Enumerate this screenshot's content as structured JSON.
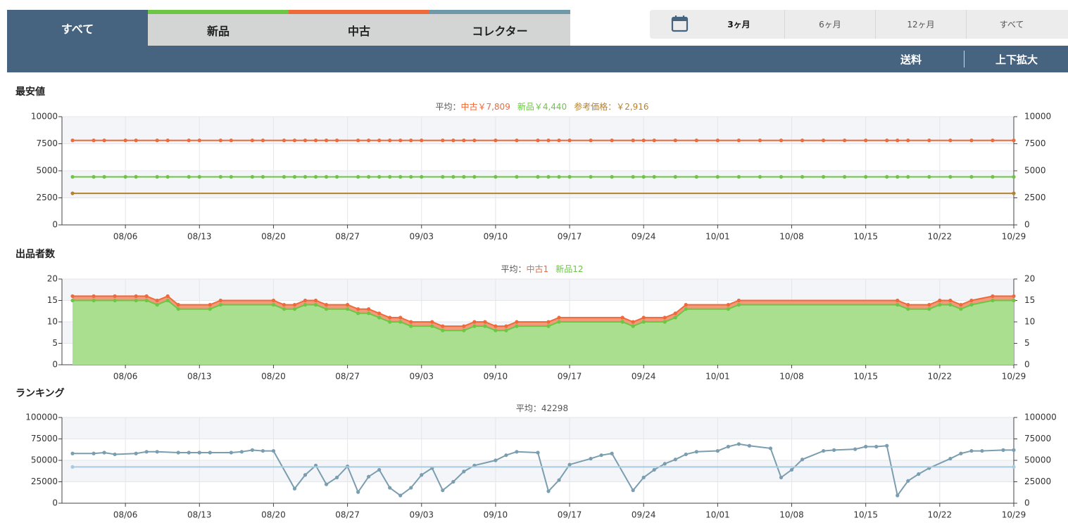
{
  "tabs": [
    {
      "label": "すべて",
      "color": null
    },
    {
      "label": "新品",
      "color": "#6cc644"
    },
    {
      "label": "中古",
      "color": "#ee6a3a"
    },
    {
      "label": "コレクター",
      "color": "#6f98a8"
    }
  ],
  "range_options": [
    "3ヶ月",
    "6ヶ月",
    "12ヶ月",
    "すべて"
  ],
  "toolbar": [
    "送料",
    "上下拡大"
  ],
  "chart_data": [
    {
      "type": "line",
      "title": "最安値",
      "subtitle_prefix": "平均：",
      "xlim": [
        "07/31",
        "10/29"
      ],
      "xticks": [
        "08/06",
        "08/13",
        "08/20",
        "08/27",
        "09/03",
        "09/10",
        "09/17",
        "09/24",
        "10/01",
        "10/08",
        "10/15",
        "10/22",
        "10/29"
      ],
      "ylim": [
        0,
        10000
      ],
      "yticks": [
        0,
        2500,
        5000,
        7500,
        10000
      ],
      "x": [
        "08/01",
        "08/03",
        "08/04",
        "08/06",
        "08/07",
        "08/09",
        "08/10",
        "08/12",
        "08/13",
        "08/15",
        "08/16",
        "08/18",
        "08/19",
        "08/21",
        "08/22",
        "08/23",
        "08/24",
        "08/25",
        "08/26",
        "08/28",
        "08/29",
        "08/30",
        "08/31",
        "09/01",
        "09/02",
        "09/03",
        "09/05",
        "09/06",
        "09/07",
        "09/08",
        "09/10",
        "09/12",
        "09/14",
        "09/15",
        "09/16",
        "09/17",
        "09/19",
        "09/21",
        "09/23",
        "09/24",
        "09/25",
        "09/27",
        "09/29",
        "10/01",
        "10/03",
        "10/05",
        "10/07",
        "10/09",
        "10/11",
        "10/13",
        "10/15",
        "10/17",
        "10/18",
        "10/19",
        "10/21",
        "10/23",
        "10/25",
        "10/27",
        "10/29"
      ],
      "series": [
        {
          "name": "中古",
          "color": "#ee6a3a",
          "average_label": "中古￥7,809",
          "values": [
            7809,
            7809,
            7809,
            7809,
            7809,
            7809,
            7809,
            7809,
            7809,
            7809,
            7809,
            7809,
            7809,
            7809,
            7809,
            7809,
            7809,
            7809,
            7809,
            7809,
            7809,
            7809,
            7809,
            7809,
            7809,
            7809,
            7809,
            7809,
            7809,
            7809,
            7809,
            7809,
            7809,
            7809,
            7809,
            7809,
            7809,
            7809,
            7809,
            7809,
            7809,
            7809,
            7809,
            7809,
            7809,
            7809,
            7809,
            7809,
            7809,
            7809,
            7809,
            7809,
            7809,
            7809,
            7809,
            7809,
            7809,
            7809,
            7809
          ]
        },
        {
          "name": "新品",
          "color": "#6cc644",
          "average_label": "新品￥4,440",
          "values": [
            4440,
            4440,
            4440,
            4440,
            4440,
            4440,
            4440,
            4440,
            4440,
            4440,
            4440,
            4440,
            4440,
            4440,
            4440,
            4440,
            4440,
            4440,
            4440,
            4440,
            4440,
            4440,
            4440,
            4440,
            4440,
            4440,
            4440,
            4440,
            4440,
            4440,
            4440,
            4440,
            4440,
            4440,
            4440,
            4440,
            4440,
            4440,
            4440,
            4440,
            4440,
            4440,
            4440,
            4440,
            4440,
            4440,
            4440,
            4440,
            4440,
            4440,
            4440,
            4440,
            4440,
            4440,
            4440,
            4440,
            4440,
            4440,
            4440
          ]
        },
        {
          "name": "参考価格",
          "color": "#b5822e",
          "average_label": "参考価格：￥2,916",
          "x": [
            "08/01",
            "10/29"
          ],
          "values": [
            2916,
            2916
          ]
        }
      ]
    },
    {
      "type": "stacked-area",
      "title": "出品者数",
      "subtitle_prefix": "平均：",
      "xlim": [
        "07/31",
        "10/29"
      ],
      "xticks": [
        "08/06",
        "08/13",
        "08/20",
        "08/27",
        "09/03",
        "09/10",
        "09/17",
        "09/24",
        "10/01",
        "10/08",
        "10/15",
        "10/22",
        "10/29"
      ],
      "ylim": [
        0,
        20
      ],
      "yticks": [
        0,
        5,
        10,
        15,
        20
      ],
      "x": [
        "08/01",
        "08/03",
        "08/05",
        "08/07",
        "08/08",
        "08/09",
        "08/10",
        "08/11",
        "08/14",
        "08/15",
        "08/20",
        "08/21",
        "08/22",
        "08/23",
        "08/24",
        "08/25",
        "08/27",
        "08/28",
        "08/29",
        "08/30",
        "08/31",
        "09/01",
        "09/02",
        "09/04",
        "09/05",
        "09/07",
        "09/08",
        "09/09",
        "09/10",
        "09/11",
        "09/12",
        "09/15",
        "09/16",
        "09/22",
        "09/23",
        "09/24",
        "09/26",
        "09/27",
        "09/28",
        "10/02",
        "10/03",
        "10/18",
        "10/19",
        "10/21",
        "10/22",
        "10/23",
        "10/24",
        "10/25",
        "10/27",
        "10/29"
      ],
      "series": [
        {
          "name": "新品",
          "color": "#6cc644",
          "fill": "#a9df8f",
          "average_label": "新品12",
          "values": [
            15,
            15,
            15,
            15,
            15,
            14,
            15,
            13,
            13,
            14,
            14,
            13,
            13,
            14,
            14,
            13,
            13,
            12,
            12,
            11,
            10,
            10,
            9,
            9,
            8,
            8,
            9,
            9,
            8,
            8,
            9,
            9,
            10,
            10,
            9,
            10,
            10,
            11,
            13,
            13,
            14,
            14,
            13,
            13,
            14,
            14,
            13,
            14,
            15,
            15
          ]
        },
        {
          "name": "中古",
          "color": "#ee6a3a",
          "fill": "#f39a7c",
          "average_label": "中古1",
          "values": [
            1,
            1,
            1,
            1,
            1,
            1,
            1,
            1,
            1,
            1,
            1,
            1,
            1,
            1,
            1,
            1,
            1,
            1,
            1,
            1,
            1,
            1,
            1,
            1,
            1,
            1,
            1,
            1,
            1,
            1,
            1,
            1,
            1,
            1,
            1,
            1,
            1,
            1,
            1,
            1,
            1,
            1,
            1,
            1,
            1,
            1,
            1,
            1,
            1,
            1
          ]
        }
      ]
    },
    {
      "type": "line",
      "title": "ランキング",
      "average_label": "平均：42298",
      "average": 42298,
      "average_color": "#a9cbe0",
      "xlim": [
        "07/31",
        "10/29"
      ],
      "xticks": [
        "08/06",
        "08/13",
        "08/20",
        "08/27",
        "09/03",
        "09/10",
        "09/17",
        "09/24",
        "10/01",
        "10/08",
        "10/15",
        "10/22",
        "10/29"
      ],
      "ylim": [
        0,
        100000
      ],
      "yticks": [
        0,
        25000,
        50000,
        75000,
        100000
      ],
      "x": [
        "08/01",
        "08/03",
        "08/04",
        "08/05",
        "08/07",
        "08/08",
        "08/09",
        "08/11",
        "08/12",
        "08/13",
        "08/14",
        "08/16",
        "08/17",
        "08/18",
        "08/19",
        "08/20",
        "08/22",
        "08/23",
        "08/24",
        "08/25",
        "08/26",
        "08/27",
        "08/28",
        "08/29",
        "08/30",
        "08/31",
        "09/01",
        "09/02",
        "09/03",
        "09/04",
        "09/05",
        "09/06",
        "09/07",
        "09/08",
        "09/10",
        "09/11",
        "09/12",
        "09/14",
        "09/15",
        "09/16",
        "09/17",
        "09/19",
        "09/20",
        "09/21",
        "09/23",
        "09/24",
        "09/25",
        "09/26",
        "09/27",
        "09/28",
        "09/29",
        "10/01",
        "10/02",
        "10/03",
        "10/04",
        "10/06",
        "10/07",
        "10/08",
        "10/09",
        "10/11",
        "10/12",
        "10/14",
        "10/15",
        "10/16",
        "10/17",
        "10/18",
        "10/19",
        "10/20",
        "10/21",
        "10/23",
        "10/24",
        "10/25",
        "10/26",
        "10/28",
        "10/29"
      ],
      "series": [
        {
          "color": "#7a9eb0",
          "values": [
            58000,
            58000,
            59000,
            57000,
            58000,
            60000,
            60000,
            59000,
            59000,
            59000,
            59000,
            59000,
            60000,
            62000,
            61000,
            61000,
            17000,
            33000,
            44000,
            22000,
            30000,
            43000,
            13000,
            31000,
            39000,
            18000,
            9000,
            18000,
            33000,
            41000,
            15000,
            25000,
            37000,
            44000,
            50000,
            56000,
            60000,
            59000,
            14000,
            27000,
            45000,
            52000,
            56000,
            58000,
            15000,
            30000,
            39000,
            46000,
            51000,
            57000,
            60000,
            61000,
            66000,
            69000,
            67000,
            64000,
            30000,
            39000,
            51000,
            61000,
            62000,
            63000,
            66000,
            66000,
            67000,
            9000,
            26000,
            34000,
            41000,
            52000,
            58000,
            61000,
            61000,
            62000,
            62000
          ]
        }
      ]
    }
  ]
}
